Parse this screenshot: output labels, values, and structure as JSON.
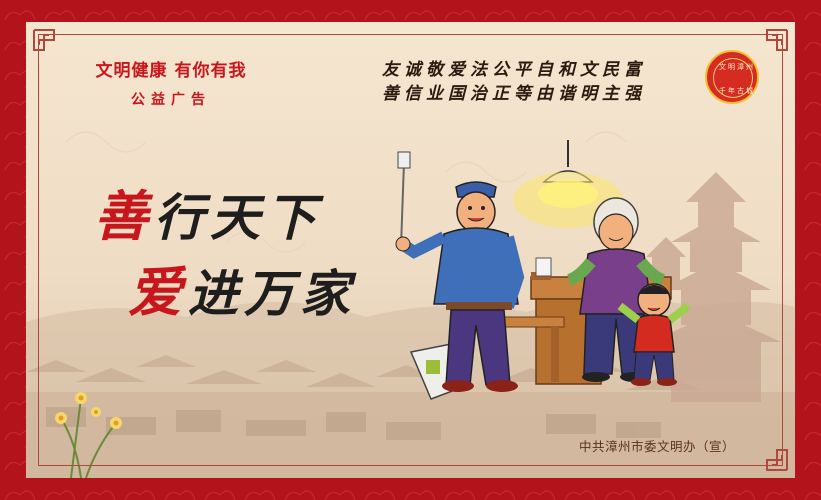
{
  "slogan": {
    "line1": "文明健康  有你有我",
    "line2": "公益广告"
  },
  "core_values": {
    "line1": "友诚敬爱法公平自和文民富",
    "line2": "善信业国治正等由谐明主强"
  },
  "seal": {
    "top_text": "文明漳州",
    "bottom_text": "千年古城"
  },
  "headline": {
    "line1_first": "善",
    "line1_rest": "行天下",
    "line2_first": "爱",
    "line2_rest": "进万家"
  },
  "credit": "中共漳州市委文明办（宣）",
  "colors": {
    "border_red": "#b3141b",
    "accent_red": "#c8161d",
    "paper": "#f3e3cc"
  }
}
